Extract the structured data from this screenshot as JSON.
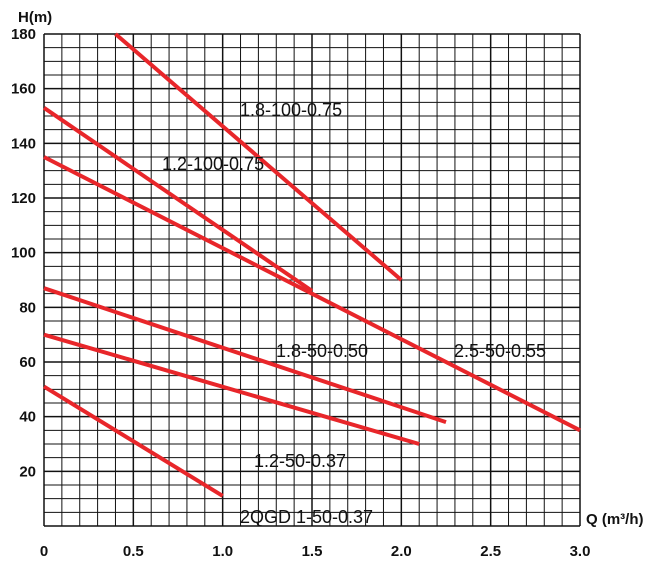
{
  "chart_data": {
    "type": "line",
    "title": "",
    "xlabel": "Q (m³/h)",
    "ylabel": "H(m)",
    "xlim": [
      0,
      3.0
    ],
    "ylim": [
      0,
      180
    ],
    "x_ticks": [
      "0",
      "0.5",
      "1.0",
      "1.5",
      "2.0",
      "2.5",
      "3.0"
    ],
    "y_ticks": [
      "20",
      "40",
      "60",
      "80",
      "100",
      "120",
      "140",
      "160",
      "180"
    ],
    "grid": true,
    "series_color": "#e8262a",
    "series": [
      {
        "name": "1.8-100-0.75",
        "points": [
          [
            0.4,
            180
          ],
          [
            2.0,
            90
          ]
        ]
      },
      {
        "name": "1.2-100-0.75",
        "points": [
          [
            0,
            153
          ],
          [
            1.5,
            86
          ]
        ]
      },
      {
        "name": "2.5-50-0.55",
        "points": [
          [
            0,
            135
          ],
          [
            3.0,
            35
          ]
        ]
      },
      {
        "name": "1.8-50-0.50",
        "points": [
          [
            0,
            87
          ],
          [
            2.25,
            38
          ]
        ]
      },
      {
        "name": "1.2-50-0.37",
        "points": [
          [
            0,
            70
          ],
          [
            2.1,
            30
          ]
        ]
      },
      {
        "name": "2QGD 1-50-0.37",
        "points": [
          [
            0,
            51
          ],
          [
            1.0,
            11
          ]
        ]
      }
    ]
  }
}
